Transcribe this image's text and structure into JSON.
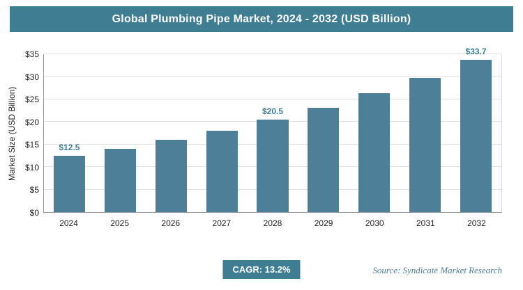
{
  "title": "Global Plumbing Pipe Market, 2024 - 2032 (USD Billion)",
  "footer": {
    "cagr_label": "CAGR: 13.2%",
    "source": "Source: Syndicate Market Research"
  },
  "colors": {
    "header_bg": "#3e7d92",
    "bar": "#4d7f98",
    "data_label": "#3e7d92",
    "gridline": "#e2e2e2"
  },
  "chart_data": {
    "type": "bar",
    "title": "Global Plumbing Pipe Market, 2024 - 2032 (USD Billion)",
    "categories": [
      "2024",
      "2025",
      "2026",
      "2027",
      "2028",
      "2029",
      "2030",
      "2031",
      "2032"
    ],
    "values": [
      12.5,
      14.1,
      16.0,
      18.1,
      20.5,
      23.2,
      26.3,
      29.8,
      33.7
    ],
    "point_labels": [
      "$12.5",
      "",
      "",
      "",
      "$20.5",
      "",
      "",
      "",
      "$33.7"
    ],
    "xlabel": "",
    "ylabel": "Market Size (USD Billion)",
    "ylim": [
      0,
      35
    ],
    "yticks": [
      {
        "v": 0,
        "label": "$0"
      },
      {
        "v": 5,
        "label": "$5"
      },
      {
        "v": 10,
        "label": "$10"
      },
      {
        "v": 15,
        "label": "$15"
      },
      {
        "v": 20,
        "label": "$20"
      },
      {
        "v": 25,
        "label": "$25"
      },
      {
        "v": 30,
        "label": "$30"
      },
      {
        "v": 35,
        "label": "$35"
      }
    ],
    "grid": "horizontal",
    "legend": "none"
  }
}
